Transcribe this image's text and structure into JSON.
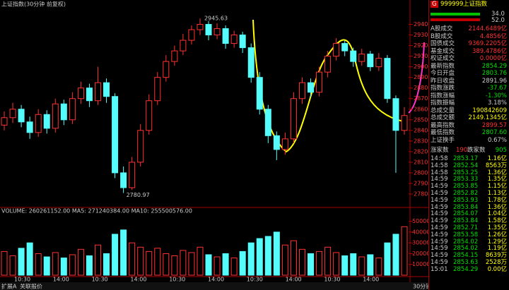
{
  "header": {
    "title": "上证指数(30分钟 前复权)"
  },
  "chart_data": [
    {
      "type": "candlestick",
      "open": [
        2845,
        2852,
        2860,
        2848,
        2838,
        2855,
        2842,
        2865,
        2850,
        2870,
        2880,
        2868,
        2885,
        2872,
        2800,
        2786,
        2810,
        2840,
        2868,
        2890,
        2905,
        2915,
        2925,
        2935,
        2940,
        2930,
        2936,
        2922,
        2930,
        2918,
        2890,
        2860,
        2835,
        2822,
        2832,
        2870,
        2885,
        2876,
        2895,
        2910,
        2922,
        2915,
        2905,
        2912,
        2900,
        2908,
        2870,
        2840
      ],
      "high": [
        2858,
        2866,
        2864,
        2853,
        2860,
        2859,
        2870,
        2869,
        2876,
        2886,
        2884,
        2900,
        2889,
        2875,
        2806,
        2815,
        2846,
        2874,
        2895,
        2911,
        2920,
        2931,
        2939,
        2945.63,
        2943,
        2941,
        2939,
        2934,
        2933,
        2922,
        2895,
        2864,
        2839,
        2838,
        2876,
        2890,
        2889,
        2900,
        2915,
        2927,
        2925,
        2918,
        2917,
        2915,
        2913,
        2911,
        2873,
        2862
      ],
      "low": [
        2840,
        2847,
        2843,
        2832,
        2834,
        2837,
        2838,
        2845,
        2846,
        2865,
        2862,
        2864,
        2866,
        2795,
        2780.97,
        2784,
        2806,
        2836,
        2864,
        2886,
        2901,
        2911,
        2921,
        2930,
        2925,
        2926,
        2917,
        2918,
        2913,
        2885,
        2855,
        2828,
        2812,
        2817,
        2828,
        2865,
        2871,
        2872,
        2890,
        2906,
        2910,
        2900,
        2901,
        2896,
        2896,
        2866,
        2800,
        2836
      ],
      "close": [
        2852,
        2860,
        2848,
        2838,
        2855,
        2842,
        2865,
        2850,
        2870,
        2880,
        2868,
        2885,
        2872,
        2800,
        2786,
        2810,
        2840,
        2868,
        2890,
        2905,
        2915,
        2925,
        2935,
        2940,
        2930,
        2936,
        2922,
        2930,
        2918,
        2890,
        2860,
        2835,
        2822,
        2832,
        2870,
        2885,
        2876,
        2895,
        2910,
        2922,
        2915,
        2905,
        2912,
        2900,
        2908,
        2870,
        2840,
        2854
      ],
      "high_label": "2945.63",
      "low_label": "2780.97",
      "ylim": [
        2770,
        2955
      ],
      "yticks": [
        2780,
        2790,
        2800,
        2810,
        2820,
        2830,
        2840,
        2850,
        2860,
        2870,
        2880,
        2890,
        2900,
        2910,
        2920,
        2930,
        2940
      ],
      "up_color": "#ff3232",
      "down_color": "#54fcfc"
    },
    {
      "type": "bar",
      "title": "VOLUME: 260261152.00 MA5: 271240384.00 MA10: 255500576.00",
      "values": [
        22000,
        18000,
        25000,
        30000,
        20000,
        17000,
        21000,
        16000,
        19000,
        24000,
        18000,
        28000,
        20000,
        38000,
        42000,
        30000,
        26000,
        22000,
        25000,
        20000,
        18000,
        23000,
        21000,
        26000,
        19000,
        17000,
        20000,
        16000,
        22000,
        30000,
        34000,
        36000,
        40000,
        28000,
        32000,
        24000,
        20000,
        22000,
        26000,
        21000,
        18000,
        20000,
        17000,
        19000,
        16000,
        30000,
        38000,
        45000
      ],
      "ylim": [
        0,
        55000
      ],
      "yticks": [
        10000,
        20000,
        30000,
        40000,
        50000
      ]
    }
  ],
  "time_labels": [
    "10:30",
    "14:00",
    "10:30",
    "14:00",
    "10:30",
    "14:00",
    "10:30",
    "14:00",
    "10:30",
    "14:00"
  ],
  "quote": {
    "badge": "G",
    "code": "999999",
    "name": "上证指数",
    "ratio": [
      "34.0",
      "52.0"
    ],
    "stats": [
      [
        "A股成交",
        "2144.6489亿"
      ],
      [
        "B股成交",
        "4.4856亿"
      ],
      [
        "国债成交",
        "9369.2205亿"
      ],
      [
        "基金成交",
        "389.4786亿"
      ],
      [
        "权证成交",
        "0.0000亿"
      ],
      [
        "最新指数",
        "2854.29"
      ],
      [
        "今日开盘",
        "2803.76"
      ],
      [
        "昨日收盘",
        "2891.96"
      ],
      [
        "指数涨跌",
        "-37.67"
      ],
      [
        "指数涨幅",
        "-1.30%"
      ],
      [
        "指数振幅",
        "3.18%"
      ],
      [
        "总成交量",
        "190842609"
      ],
      [
        "总成交额",
        "2149.1345亿"
      ],
      [
        "最高指数",
        "2899.57"
      ],
      [
        "最低指数",
        "2807.60"
      ],
      [
        "上证换手",
        "0.67%"
      ]
    ],
    "breadth": [
      "涨家数",
      "190",
      "跌家数",
      "905"
    ],
    "trades": [
      [
        "14:58",
        "2853.17",
        "1.16亿"
      ],
      [
        "14:58",
        "2852.54",
        "8563万"
      ],
      [
        "14:58",
        "2853.25",
        "1.36亿"
      ],
      [
        "14:59",
        "2853.33",
        "1.35亿"
      ],
      [
        "14:59",
        "2853.85",
        "1.15亿"
      ],
      [
        "14:59",
        "2852.82",
        "1.13亿"
      ],
      [
        "14:59",
        "2853.93",
        "1.78亿"
      ],
      [
        "14:59",
        "2853.84",
        "1.36亿"
      ],
      [
        "14:59",
        "2854.07",
        "1.04亿"
      ],
      [
        "14:59",
        "2853.84",
        "1.58亿"
      ],
      [
        "14:59",
        "2852.71",
        "1.35亿"
      ],
      [
        "14:59",
        "2853.58",
        "1.26亿"
      ],
      [
        "14:59",
        "2854.02",
        "1.29亿"
      ],
      [
        "14:59",
        "2854.02",
        "1.19亿"
      ],
      [
        "14:59",
        "2854.15",
        "8639万"
      ],
      [
        "14:59",
        "2853.63",
        "2528万"
      ],
      [
        "15:01",
        "2854.29",
        "0.00亿"
      ]
    ]
  },
  "footer": {
    "tabs": [
      "扩展A",
      "关联报价"
    ],
    "period": "30分钟"
  }
}
